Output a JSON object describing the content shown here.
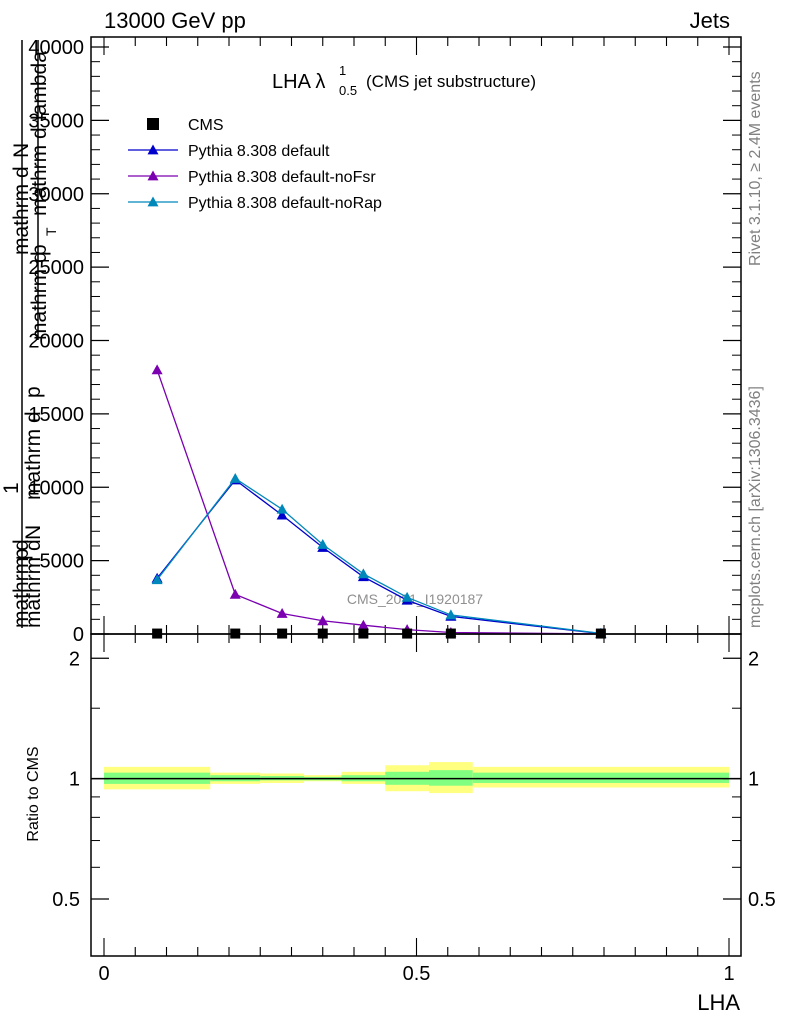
{
  "header": {
    "left": "13000 GeV pp",
    "right": "Jets"
  },
  "plot_title": {
    "main": "LHA λ",
    "sup": "1",
    "sub": "0.5",
    "suffix": "(CMS jet substructure)"
  },
  "side_labels": {
    "rivet": "Rivet 3.1.10, ≥ 2.4M events",
    "mcplots": "mcplots.cern.ch [arXiv:1306.3436]"
  },
  "watermark": "CMS_2021_I1920187",
  "ylabel_main": {
    "numerator_1": "mathrm d",
    "numerator_2": "N",
    "denominator_1": "mathrm d",
    "denominator_2": "p",
    "denominator_3": "mathrm d",
    "denominator_4": "lambda",
    "pt_sub": "T",
    "one": "1",
    "prefix_1": "mathrm d",
    "prefix_2": "N",
    "prefix_3": "mathrm d",
    "prefix_4": "p",
    "prefix_5": "mathrm d",
    "prefix_6": "p"
  },
  "ratio_ylabel": "Ratio to CMS",
  "xlabel": "LHA",
  "colors": {
    "cms": "#000000",
    "default": "#0000cc",
    "noFsr": "#7a00b0",
    "noRap": "#0088bb",
    "band_outer": "#ffff80",
    "band_inner": "#80ff80"
  },
  "chart_data": [
    {
      "type": "line",
      "x": [
        0.085,
        0.21,
        0.285,
        0.35,
        0.415,
        0.485,
        0.555,
        0.795
      ],
      "xlim": [
        0,
        1
      ],
      "ylim": [
        0,
        40000
      ],
      "y_ticks": [
        "0",
        "5000",
        "10000",
        "15000",
        "20000",
        "25000",
        "30000",
        "35000",
        "40000"
      ],
      "y_tick_values": [
        0,
        5000,
        10000,
        15000,
        20000,
        25000,
        30000,
        35000,
        40000
      ],
      "legend_position": "top-left",
      "series": [
        {
          "name": "CMS",
          "key": "cms",
          "marker": "square",
          "values": [
            30,
            30,
            30,
            30,
            30,
            30,
            30,
            30
          ]
        },
        {
          "name": "Pythia 8.308 default",
          "key": "default",
          "marker": "triangle",
          "values": [
            3800,
            10500,
            8100,
            5900,
            3900,
            2300,
            1200,
            30
          ]
        },
        {
          "name": "Pythia 8.308 default-noFsr",
          "key": "noFsr",
          "marker": "triangle",
          "values": [
            18000,
            2700,
            1400,
            900,
            600,
            300,
            100,
            10
          ]
        },
        {
          "name": "Pythia 8.308 default-noRap",
          "key": "noRap",
          "marker": "triangle",
          "values": [
            3700,
            10600,
            8500,
            6100,
            4100,
            2500,
            1300,
            40
          ]
        }
      ]
    },
    {
      "type": "area",
      "xlabel": "LHA",
      "ylabel": "Ratio to CMS",
      "xlim": [
        0,
        1
      ],
      "ylim": [
        0.36,
        2.3
      ],
      "y_ticks": [
        "0.5",
        "1",
        "2"
      ],
      "y_tick_values": [
        0.5,
        1,
        2
      ],
      "x_ticks": [
        "0",
        "0.5",
        "1"
      ],
      "x_tick_values": [
        0,
        0.5,
        1
      ],
      "bins": [
        {
          "lo": 0.0,
          "hi": 0.17,
          "outer": [
            0.94,
            1.07
          ],
          "inner": [
            0.97,
            1.035
          ]
        },
        {
          "lo": 0.17,
          "hi": 0.25,
          "outer": [
            0.97,
            1.035
          ],
          "inner": [
            0.985,
            1.02
          ]
        },
        {
          "lo": 0.25,
          "hi": 0.32,
          "outer": [
            0.975,
            1.03
          ],
          "inner": [
            0.99,
            1.015
          ]
        },
        {
          "lo": 0.32,
          "hi": 0.38,
          "outer": [
            0.985,
            1.02
          ],
          "inner": [
            0.99,
            1.01
          ]
        },
        {
          "lo": 0.38,
          "hi": 0.45,
          "outer": [
            0.97,
            1.04
          ],
          "inner": [
            0.985,
            1.02
          ]
        },
        {
          "lo": 0.45,
          "hi": 0.52,
          "outer": [
            0.93,
            1.08
          ],
          "inner": [
            0.965,
            1.04
          ]
        },
        {
          "lo": 0.52,
          "hi": 0.59,
          "outer": [
            0.92,
            1.1
          ],
          "inner": [
            0.96,
            1.05
          ]
        },
        {
          "lo": 0.59,
          "hi": 1.0,
          "outer": [
            0.95,
            1.07
          ],
          "inner": [
            0.975,
            1.035
          ]
        }
      ]
    }
  ]
}
